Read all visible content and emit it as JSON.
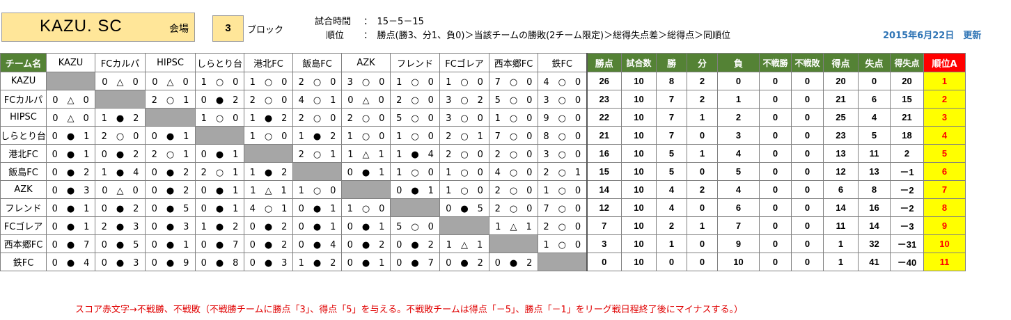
{
  "header": {
    "title": "KAZU. SC",
    "venue_label": "会場",
    "block_number": "3",
    "block_label": "ブロック",
    "match_time_label": "試合時間",
    "match_time_value": "：　15－5－15",
    "ranking_label": "順位",
    "ranking_value": "：　勝点(勝3、分1、負0)＞当該チームの勝敗(2チーム限定)＞総得失点差＞総得点＞同順位",
    "updated": "2015年6月22日　更新"
  },
  "table": {
    "corner": "チーム名",
    "teams": [
      "KAZU",
      "FCカルパ",
      "HIPSC",
      "しらとり台",
      "港北FC",
      "飯島FC",
      "AZK",
      "フレンド",
      "FCゴレア",
      "西本郷FC",
      "鉄FC"
    ],
    "stat_headers": [
      "勝点",
      "試合数",
      "勝",
      "分",
      "負",
      "不戦勝",
      "不戦敗",
      "得点",
      "失点",
      "得失点"
    ],
    "rank_header": "順位A",
    "rows": [
      {
        "name": "KAZU",
        "results": [
          null,
          "0　△　0",
          "0　△　0",
          "1　○　0",
          "1　○　0",
          "2　○　0",
          "3　○　0",
          "1　○　0",
          "1　○　0",
          "7　○　0",
          "4　○　0"
        ],
        "stats": [
          "26",
          "10",
          "8",
          "2",
          "0",
          "0",
          "0",
          "20",
          "0",
          "20"
        ],
        "rank": "1"
      },
      {
        "name": "FCカルパ",
        "results": [
          "0　△　0",
          null,
          "2　○　1",
          "0　●　2",
          "2　○　0",
          "4　○　1",
          "0　△　0",
          "2　○　0",
          "3　○　2",
          "5　○　0",
          "3　○　0"
        ],
        "stats": [
          "23",
          "10",
          "7",
          "2",
          "1",
          "0",
          "0",
          "21",
          "6",
          "15"
        ],
        "rank": "2"
      },
      {
        "name": "HIPSC",
        "results": [
          "0　△　0",
          "1　●　2",
          null,
          "1　○　0",
          "1　●　2",
          "2　○　0",
          "2　○　0",
          "5　○　0",
          "3　○　0",
          "1　○　0",
          "9　○　0"
        ],
        "stats": [
          "22",
          "10",
          "7",
          "1",
          "2",
          "0",
          "0",
          "25",
          "4",
          "21"
        ],
        "rank": "3"
      },
      {
        "name": "しらとり台",
        "results": [
          "0　●　1",
          "2　○　0",
          "0　●　1",
          null,
          "1　○　0",
          "1　●　2",
          "1　○　0",
          "1　○　0",
          "2　○　1",
          "7　○　0",
          "8　○　0"
        ],
        "stats": [
          "21",
          "10",
          "7",
          "0",
          "3",
          "0",
          "0",
          "23",
          "5",
          "18"
        ],
        "rank": "4"
      },
      {
        "name": "港北FC",
        "results": [
          "0　●　1",
          "0　●　2",
          "2　○　1",
          "0　●　1",
          null,
          "2　○　1",
          "1　△　1",
          "1　●　4",
          "2　○　0",
          "2　○　0",
          "3　○　0"
        ],
        "stats": [
          "16",
          "10",
          "5",
          "1",
          "4",
          "0",
          "0",
          "13",
          "11",
          "2"
        ],
        "rank": "5"
      },
      {
        "name": "飯島FC",
        "results": [
          "0　●　2",
          "1　●　4",
          "0　●　2",
          "2　○　1",
          "1　●　2",
          null,
          "0　●　1",
          "1　○　0",
          "1　○　0",
          "4　○　0",
          "2　○　1"
        ],
        "stats": [
          "15",
          "10",
          "5",
          "0",
          "5",
          "0",
          "0",
          "12",
          "13",
          "－1"
        ],
        "rank": "6"
      },
      {
        "name": "AZK",
        "results": [
          "0　●　3",
          "0　△　0",
          "0　●　2",
          "0　●　1",
          "1　△　1",
          "1　○　0",
          null,
          "0　●　1",
          "1　○　0",
          "2　○　0",
          "1　○　0"
        ],
        "stats": [
          "14",
          "10",
          "4",
          "2",
          "4",
          "0",
          "0",
          "6",
          "8",
          "－2"
        ],
        "rank": "7"
      },
      {
        "name": "フレンド",
        "results": [
          "0　●　1",
          "0　●　2",
          "0　●　5",
          "0　●　1",
          "4　○　1",
          "0　●　1",
          "1　○　0",
          null,
          "0　●　5",
          "2　○　0",
          "7　○　0"
        ],
        "stats": [
          "12",
          "10",
          "4",
          "0",
          "6",
          "0",
          "0",
          "14",
          "16",
          "－2"
        ],
        "rank": "8"
      },
      {
        "name": "FCゴレア",
        "results": [
          "0　●　1",
          "2　●　3",
          "0　●　3",
          "1　●　2",
          "0　●　2",
          "0　●　1",
          "0　●　1",
          "5　○　0",
          null,
          "1　△　1",
          "2　○　0"
        ],
        "stats": [
          "7",
          "10",
          "2",
          "1",
          "7",
          "0",
          "0",
          "11",
          "14",
          "－3"
        ],
        "rank": "9"
      },
      {
        "name": "西本郷FC",
        "results": [
          "0　●　7",
          "0　●　5",
          "0　●　1",
          "0　●　7",
          "0　●　2",
          "0　●　4",
          "0　●　2",
          "0　●　2",
          "1　△　1",
          null,
          "1　○　0"
        ],
        "stats": [
          "3",
          "10",
          "1",
          "0",
          "9",
          "0",
          "0",
          "1",
          "32",
          "－31"
        ],
        "rank": "10"
      },
      {
        "name": "鉄FC",
        "results": [
          "0　●　4",
          "0　●　3",
          "0　●　9",
          "0　●　8",
          "0　●　3",
          "1　●　2",
          "0　●　1",
          "0　●　7",
          "0　●　2",
          "0　●　2",
          null
        ],
        "stats": [
          "0",
          "10",
          "0",
          "0",
          "10",
          "0",
          "0",
          "1",
          "41",
          "－40"
        ],
        "rank": "11"
      }
    ]
  },
  "note": "スコア赤文字→不戦勝、不戦敗（不戦勝チームに勝点「3」、得点「5」を与える。不戦敗チームは得点「－5」、勝点「－1」をリーグ戦日程終了後にマイナスする。）",
  "colors": {
    "title_bg": "#ffe699",
    "header_green": "#548235",
    "rank_header_red": "#ff0000",
    "rank_cell_yellow": "#ffff00",
    "self_match_gray": "#a6a6a6",
    "updated_blue": "#2e74b5",
    "note_red": "#e00000"
  }
}
